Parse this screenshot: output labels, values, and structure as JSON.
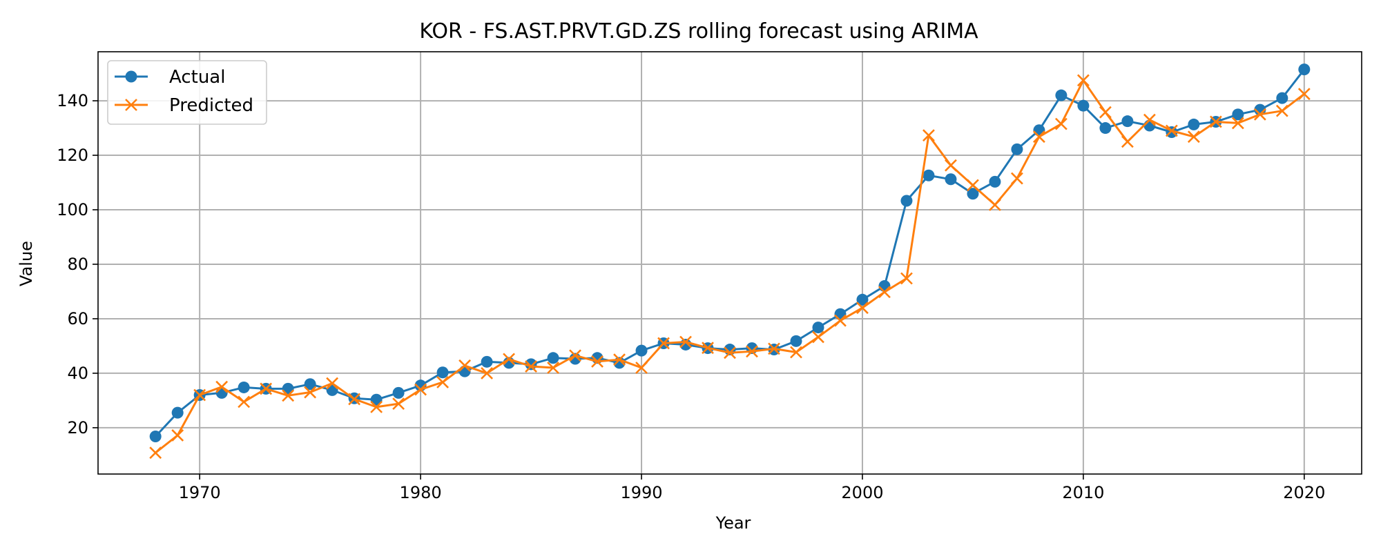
{
  "chart_data": {
    "type": "line",
    "title": "KOR - FS.AST.PRVT.GD.ZS rolling forecast using ARIMA",
    "xlabel": "Year",
    "ylabel": "Value",
    "xlim": [
      1965.4,
      2022.6
    ],
    "ylim": [
      3,
      158
    ],
    "xticks": [
      1970,
      1980,
      1990,
      2000,
      2010,
      2020
    ],
    "yticks": [
      20,
      40,
      60,
      80,
      100,
      120,
      140
    ],
    "grid": true,
    "legend_position": "upper-left",
    "x": [
      1968,
      1969,
      1970,
      1971,
      1972,
      1973,
      1974,
      1975,
      1976,
      1977,
      1978,
      1979,
      1980,
      1981,
      1982,
      1983,
      1984,
      1985,
      1986,
      1987,
      1988,
      1989,
      1990,
      1991,
      1992,
      1993,
      1994,
      1995,
      1996,
      1997,
      1998,
      1999,
      2000,
      2001,
      2002,
      2003,
      2004,
      2005,
      2006,
      2007,
      2008,
      2009,
      2010,
      2011,
      2012,
      2013,
      2014,
      2015,
      2016,
      2017,
      2018,
      2019,
      2020
    ],
    "series": [
      {
        "name": "Actual",
        "color": "#1f77b4",
        "marker": "circle",
        "values": [
          16.8,
          25.5,
          32.0,
          32.8,
          34.8,
          34.3,
          34.3,
          36.0,
          33.8,
          30.8,
          30.3,
          32.8,
          35.5,
          40.3,
          40.7,
          44.2,
          43.8,
          43.3,
          45.6,
          45.3,
          45.6,
          43.8,
          48.3,
          51.0,
          50.5,
          49.2,
          48.7,
          49.2,
          48.7,
          51.8,
          56.8,
          61.7,
          67.0,
          72.0,
          103.3,
          112.6,
          111.2,
          105.9,
          110.3,
          122.2,
          129.2,
          142.0,
          138.2,
          130.0,
          132.5,
          130.9,
          128.5,
          131.3,
          132.3,
          135.0,
          136.7,
          141.0,
          151.5
        ]
      },
      {
        "name": "Predicted",
        "color": "#ff7f0e",
        "marker": "x",
        "values": [
          10.8,
          17.2,
          32.0,
          35.0,
          29.5,
          34.3,
          31.8,
          33.0,
          36.3,
          30.5,
          27.6,
          28.8,
          34.0,
          36.7,
          42.8,
          40.0,
          45.2,
          42.5,
          42.0,
          46.5,
          44.3,
          45.0,
          42.0,
          51.0,
          51.5,
          49.3,
          47.5,
          48.0,
          49.0,
          47.7,
          53.3,
          59.3,
          64.0,
          69.8,
          74.8,
          127.3,
          116.3,
          109.0,
          101.8,
          111.5,
          126.8,
          131.5,
          147.5,
          135.8,
          125.0,
          133.0,
          129.0,
          126.8,
          132.3,
          131.8,
          135.0,
          136.3,
          142.5
        ]
      }
    ]
  }
}
